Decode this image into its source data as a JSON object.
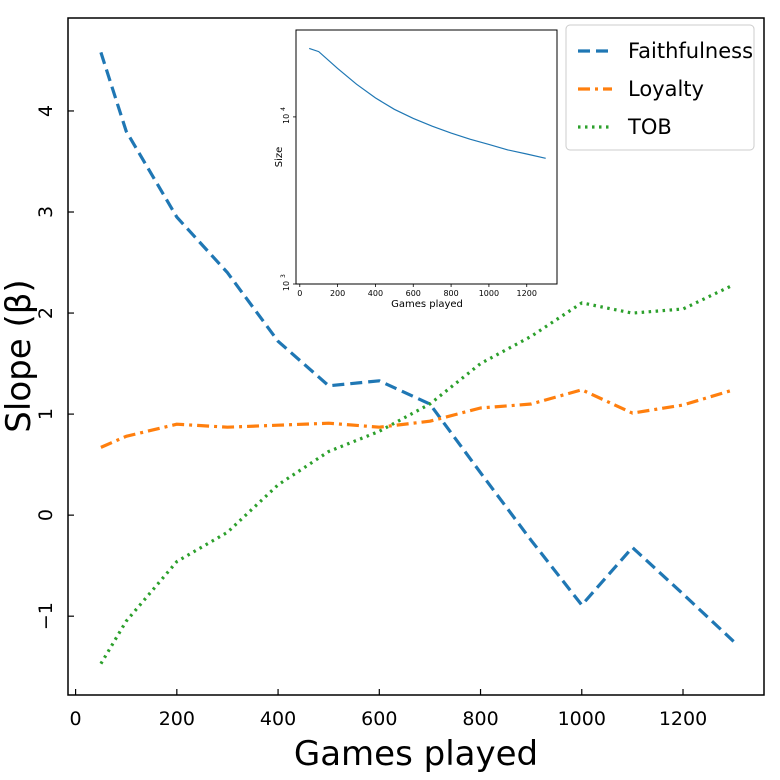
{
  "chart_data": [
    {
      "type": "line",
      "xlabel": "Games played",
      "ylabel": "Slope (β)",
      "xlim": [
        -15,
        1360
      ],
      "ylim": [
        -1.78,
        4.92
      ],
      "xticks": [
        0,
        200,
        400,
        600,
        800,
        1000,
        1200
      ],
      "yticks": [
        -1,
        0,
        1,
        2,
        3,
        4
      ],
      "ytick_labels": [
        "−1",
        "0",
        "1",
        "2",
        "3",
        "4"
      ],
      "legend_position": "top-right",
      "series": [
        {
          "name": "Faithfulness",
          "color": "#1f77b4",
          "style": "dashed",
          "x": [
            50,
            100,
            200,
            300,
            400,
            500,
            600,
            700,
            800,
            900,
            1000,
            1100,
            1200,
            1300
          ],
          "y": [
            4.58,
            3.8,
            2.95,
            2.4,
            1.72,
            1.28,
            1.33,
            1.1,
            0.42,
            -0.25,
            -0.89,
            -0.32,
            -0.78,
            -1.25
          ]
        },
        {
          "name": "Loyalty",
          "color": "#ff7f0e",
          "style": "dashdot",
          "x": [
            50,
            100,
            200,
            300,
            400,
            500,
            600,
            700,
            800,
            900,
            1000,
            1100,
            1200,
            1300
          ],
          "y": [
            0.67,
            0.78,
            0.9,
            0.87,
            0.89,
            0.91,
            0.87,
            0.93,
            1.06,
            1.1,
            1.24,
            1.01,
            1.09,
            1.24
          ]
        },
        {
          "name": "TOB",
          "color": "#2ca02c",
          "style": "dotted",
          "x": [
            50,
            100,
            200,
            300,
            400,
            500,
            600,
            700,
            800,
            900,
            1000,
            1100,
            1200,
            1300
          ],
          "y": [
            -1.47,
            -1.05,
            -0.46,
            -0.17,
            0.3,
            0.63,
            0.83,
            1.1,
            1.5,
            1.77,
            2.1,
            2.0,
            2.04,
            2.28
          ]
        }
      ]
    },
    {
      "type": "line",
      "xlabel": "Games played",
      "ylabel": "Size",
      "yscale": "log",
      "xlim": [
        -20,
        1360
      ],
      "ylim_log10": [
        3.0,
        4.52
      ],
      "xticks": [
        0,
        200,
        400,
        600,
        800,
        1000,
        1200
      ],
      "yticks": [
        {
          "base": "10",
          "exp": "3",
          "log10": 3
        },
        {
          "base": "10",
          "exp": "4",
          "log10": 4
        }
      ],
      "series": [
        {
          "color": "#1f77b4",
          "x": [
            50,
            100,
            200,
            300,
            400,
            500,
            600,
            700,
            800,
            900,
            1000,
            1100,
            1200,
            1300
          ],
          "y": [
            25700,
            24600,
            19500,
            15700,
            13000,
            11100,
            9800,
            8800,
            8000,
            7350,
            6850,
            6350,
            6000,
            5650
          ]
        }
      ]
    }
  ]
}
